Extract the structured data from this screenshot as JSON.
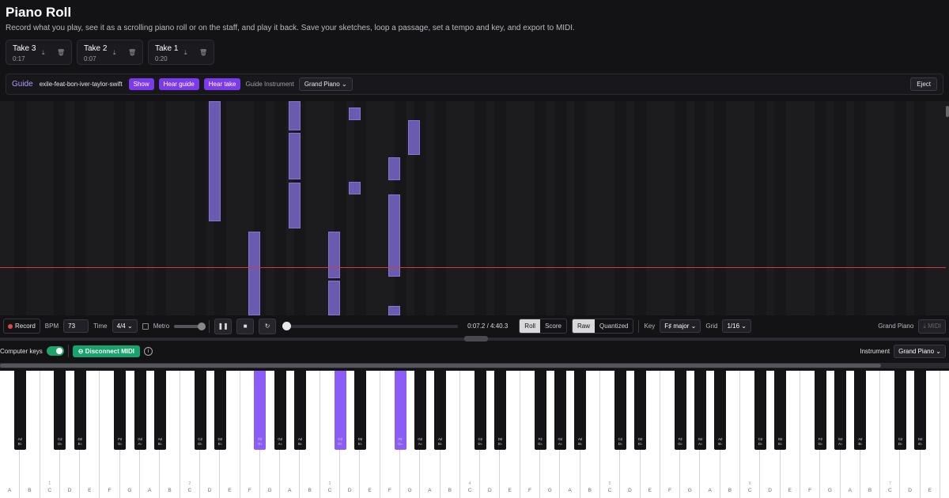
{
  "header": {
    "title": "Piano Roll",
    "subtitle": "Record what you play, see it as a scrolling piano roll or on the staff, and play it back. Save your sketches, loop a passage, set a tempo and key, and export to MIDI."
  },
  "takes": [
    {
      "name": "Take 3",
      "duration": "0:17"
    },
    {
      "name": "Take 2",
      "duration": "0:07"
    },
    {
      "name": "Take 1",
      "duration": "0:20"
    }
  ],
  "guide": {
    "label": "Guide",
    "song": "exile-feat-bon-iver-taylor-swift",
    "show": "Show",
    "hear_guide": "Hear guide",
    "hear_take": "Hear take",
    "instrument_label": "Guide Instrument",
    "instrument_value": "Grand Piano",
    "eject": "Eject"
  },
  "transport": {
    "record": "Record",
    "bpm_label": "BPM",
    "bpm_value": "73",
    "time_label": "Time",
    "time_value": "4/4",
    "metro_label": "Metro",
    "time_display": "0:07.2 / 4:40.3",
    "roll": "Roll",
    "score": "Score",
    "raw": "Raw",
    "quantized": "Quantized",
    "key_label": "Key",
    "key_value": "F♯ major",
    "grid_label": "Grid",
    "grid_value": "1/16",
    "instrument_display": "Grand Piano",
    "midi_button": "MIDI"
  },
  "midi": {
    "computer_keys": "Computer keys",
    "disconnect": "Disconnect MIDI",
    "instrument_label": "Instrument",
    "instrument_value": "Grand Piano"
  },
  "keyboard": {
    "white_keys": [
      "A",
      "B",
      "C",
      "D",
      "E",
      "F",
      "G",
      "A",
      "B",
      "C",
      "D",
      "E",
      "F",
      "G",
      "A",
      "B",
      "C",
      "D",
      "E",
      "F",
      "G",
      "A",
      "B",
      "C",
      "D",
      "E",
      "F",
      "G",
      "A",
      "B",
      "C",
      "D",
      "E",
      "F",
      "G",
      "A",
      "B",
      "C",
      "D",
      "E",
      "F",
      "G",
      "A",
      "B",
      "C",
      "D",
      "E"
    ],
    "octave_markers": {
      "2": "1",
      "9": "2",
      "16": "3",
      "23": "4",
      "30": "5",
      "37": "6",
      "44": "7"
    },
    "black_keys": [
      {
        "label": "A♯ B♭"
      },
      {
        "label": "C♯ D♭"
      },
      {
        "label": "D♯ E♭"
      },
      {
        "label": "F♯ G♭"
      },
      {
        "label": "G♯ A♭"
      },
      {
        "label": "A♯ B♭"
      },
      {
        "label": "C♯ D♭"
      },
      {
        "label": "D♯ E♭"
      },
      {
        "label": "F♯ G♭",
        "active": true
      },
      {
        "label": "G♯ A♭"
      },
      {
        "label": "A♯ B♭"
      },
      {
        "label": "C♯ D♭",
        "active": true
      },
      {
        "label": "D♯ E♭"
      },
      {
        "label": "F♯ G♭",
        "active": true
      },
      {
        "label": "G♯ A♭"
      },
      {
        "label": "A♯ B♭"
      },
      {
        "label": "C♯ D♭"
      },
      {
        "label": "D♯ E♭"
      },
      {
        "label": "F♯ G♭"
      },
      {
        "label": "G♯ A♭"
      },
      {
        "label": "A♯ B♭"
      },
      {
        "label": "C♯ D♭"
      },
      {
        "label": "D♯ E♭"
      },
      {
        "label": "F♯ G♭"
      },
      {
        "label": "G♯ A♭"
      },
      {
        "label": "A♯ B♭"
      },
      {
        "label": "C♯ D♭"
      },
      {
        "label": "D♯ E♭"
      },
      {
        "label": "F♯ G♭"
      },
      {
        "label": "G♯ A♭"
      },
      {
        "label": "A♯ B♭"
      },
      {
        "label": "C♯ D♭"
      },
      {
        "label": "D♯ E♭"
      },
      {
        "label": "F♯ G♭"
      },
      {
        "label": "G♯ A♭"
      },
      {
        "label": "A♯ B♭"
      },
      {
        "label": "C♯ D♭"
      },
      {
        "label": "D♯ E♭"
      },
      {
        "label": "F♯ G♭"
      },
      {
        "label": "G♯ A♭"
      },
      {
        "label": "A♯ B♭"
      },
      {
        "label": "C♯ D♭"
      },
      {
        "label": "D♯ E♭"
      }
    ],
    "active_color": "#8b5cf6"
  },
  "colors": {
    "accent": "#7c3aed",
    "note": "#6b5bb0",
    "playhead": "#d13b3b",
    "connected": "#17a36b"
  }
}
